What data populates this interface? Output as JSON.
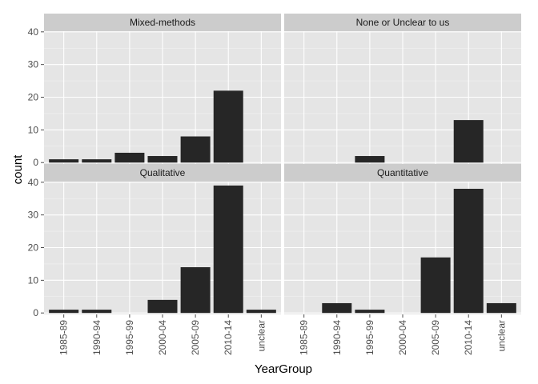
{
  "chart_data": {
    "type": "bar",
    "facet_layout": "2x2 grid, shared axes",
    "xlabel": "YearGroup",
    "ylabel": "count",
    "ylim": [
      0,
      40
    ],
    "yticks": [
      0,
      10,
      20,
      30,
      40
    ],
    "categories": [
      "1985-89",
      "1990-94",
      "1995-99",
      "2000-04",
      "2005-09",
      "2010-14",
      "unclear"
    ],
    "grid": true,
    "bar_color": "#262626",
    "panel_background": "#e5e5e5",
    "strip_background": "#cccccc",
    "panels": [
      {
        "title": "Mixed-methods",
        "values": [
          1,
          1,
          3,
          2,
          8,
          22,
          0
        ]
      },
      {
        "title": "None or Unclear to us",
        "values": [
          0,
          0,
          2,
          0,
          0,
          13,
          0
        ]
      },
      {
        "title": "Qualitative",
        "values": [
          1,
          1,
          0,
          4,
          14,
          39,
          1
        ]
      },
      {
        "title": "Quantitative",
        "values": [
          0,
          3,
          1,
          0,
          17,
          38,
          3
        ]
      }
    ]
  }
}
